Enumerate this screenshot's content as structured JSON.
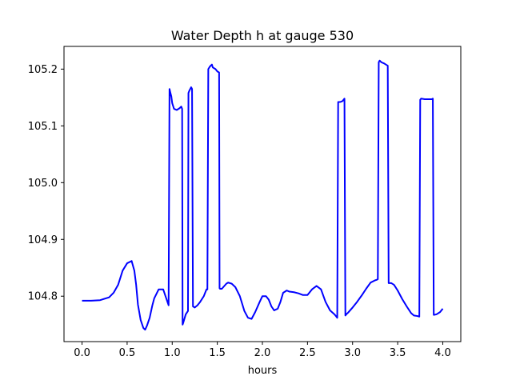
{
  "chart_data": {
    "type": "line",
    "title": "Water Depth h at gauge 530",
    "xlabel": "hours",
    "ylabel": "",
    "xlim": [
      -0.2,
      4.2
    ],
    "ylim": [
      104.72,
      105.24
    ],
    "xticks": [
      0.0,
      0.5,
      1.0,
      1.5,
      2.0,
      2.5,
      3.0,
      3.5,
      4.0
    ],
    "xtick_labels": [
      "0.0",
      "0.5",
      "1.0",
      "1.5",
      "2.0",
      "2.5",
      "3.0",
      "3.5",
      "4.0"
    ],
    "yticks": [
      104.8,
      104.9,
      105.0,
      105.1,
      105.2
    ],
    "ytick_labels": [
      "104.8",
      "104.9",
      "105.0",
      "105.1",
      "105.2"
    ],
    "grid": false,
    "series": [
      {
        "color": "#0000ff",
        "x": [
          0.0,
          0.1,
          0.2,
          0.3,
          0.35,
          0.4,
          0.45,
          0.5,
          0.55,
          0.58,
          0.6,
          0.62,
          0.65,
          0.68,
          0.7,
          0.72,
          0.75,
          0.78,
          0.8,
          0.85,
          0.9,
          0.93,
          0.96,
          0.97,
          0.98,
          0.99,
          1.0,
          1.02,
          1.05,
          1.08,
          1.1,
          1.11,
          1.115,
          1.12,
          1.15,
          1.175,
          1.18,
          1.19,
          1.21,
          1.22,
          1.23,
          1.25,
          1.28,
          1.31,
          1.35,
          1.38,
          1.39,
          1.4,
          1.42,
          1.44,
          1.45,
          1.46,
          1.48,
          1.5,
          1.52,
          1.525,
          1.53,
          1.55,
          1.6,
          1.62,
          1.66,
          1.7,
          1.75,
          1.8,
          1.84,
          1.88,
          1.92,
          1.97,
          2.0,
          2.04,
          2.07,
          2.1,
          2.13,
          2.17,
          2.2,
          2.23,
          2.27,
          2.3,
          2.35,
          2.4,
          2.45,
          2.5,
          2.55,
          2.6,
          2.65,
          2.7,
          2.75,
          2.8,
          2.82,
          2.83,
          2.84,
          2.86,
          2.88,
          2.89,
          2.91,
          2.92,
          2.93,
          2.95,
          3.0,
          3.05,
          3.1,
          3.15,
          3.2,
          3.25,
          3.27,
          3.28,
          3.29,
          3.3,
          3.32,
          3.35,
          3.38,
          3.39,
          3.4,
          3.43,
          3.46,
          3.5,
          3.55,
          3.6,
          3.65,
          3.68,
          3.72,
          3.74,
          3.75,
          3.76,
          3.8,
          3.85,
          3.88,
          3.89,
          3.9,
          3.93,
          3.97,
          4.0
        ],
        "y": [
          104.792,
          104.792,
          104.793,
          104.798,
          104.806,
          104.82,
          104.845,
          104.858,
          104.862,
          104.845,
          104.82,
          104.785,
          104.758,
          104.744,
          104.741,
          104.748,
          104.762,
          104.784,
          104.796,
          104.812,
          104.812,
          104.798,
          104.784,
          105.165,
          105.158,
          105.152,
          105.14,
          105.13,
          105.128,
          105.131,
          105.134,
          105.13,
          104.75,
          104.752,
          104.768,
          104.774,
          105.158,
          105.162,
          105.168,
          105.165,
          104.782,
          104.78,
          104.784,
          104.79,
          104.8,
          104.812,
          104.812,
          105.2,
          105.205,
          105.208,
          105.203,
          105.202,
          105.2,
          105.196,
          105.194,
          104.814,
          104.813,
          104.813,
          104.822,
          104.824,
          104.822,
          104.816,
          104.8,
          104.774,
          104.762,
          104.76,
          104.772,
          104.79,
          104.8,
          104.8,
          104.794,
          104.782,
          104.775,
          104.778,
          104.79,
          104.806,
          104.81,
          104.808,
          104.807,
          104.805,
          104.802,
          104.802,
          104.812,
          104.818,
          104.812,
          104.79,
          104.775,
          104.768,
          104.764,
          104.762,
          105.142,
          105.142,
          105.143,
          105.144,
          105.148,
          104.766,
          104.768,
          104.771,
          104.78,
          104.79,
          104.801,
          104.813,
          104.824,
          104.828,
          104.829,
          104.83,
          105.212,
          105.215,
          105.212,
          105.21,
          105.207,
          105.206,
          104.823,
          104.823,
          104.82,
          104.81,
          104.795,
          104.782,
          104.77,
          104.766,
          104.765,
          104.764,
          105.146,
          105.148,
          105.147,
          105.147,
          105.147,
          105.148,
          104.767,
          104.768,
          104.772,
          104.778
        ]
      }
    ]
  }
}
